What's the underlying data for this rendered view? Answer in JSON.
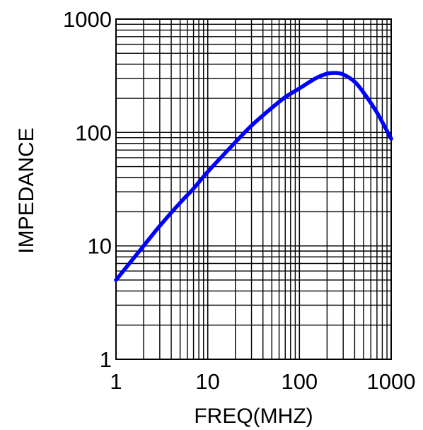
{
  "chart_data": {
    "type": "line",
    "title": "",
    "xlabel": "FREQ(MHZ)",
    "ylabel": "IMPEDANCE",
    "x_scale": "log",
    "y_scale": "log",
    "xlim": [
      1,
      1000
    ],
    "ylim": [
      1,
      1000
    ],
    "x_ticks": [
      1,
      10,
      100,
      1000
    ],
    "y_ticks": [
      1,
      10,
      100,
      1000
    ],
    "x_tick_labels": [
      "1",
      "10",
      "100",
      "1000"
    ],
    "y_tick_labels": [
      "1",
      "10",
      "100",
      "1000"
    ],
    "grid": true,
    "legend": "none",
    "series": [
      {
        "color": "#0000ff",
        "x": [
          1,
          2,
          3,
          5,
          7,
          10,
          20,
          30,
          50,
          70,
          100,
          150,
          200,
          250,
          300,
          400,
          500,
          700,
          1000
        ],
        "y": [
          5,
          10,
          15,
          24,
          32,
          45,
          82,
          115,
          165,
          205,
          245,
          300,
          330,
          335,
          325,
          280,
          225,
          150,
          88
        ]
      }
    ]
  }
}
